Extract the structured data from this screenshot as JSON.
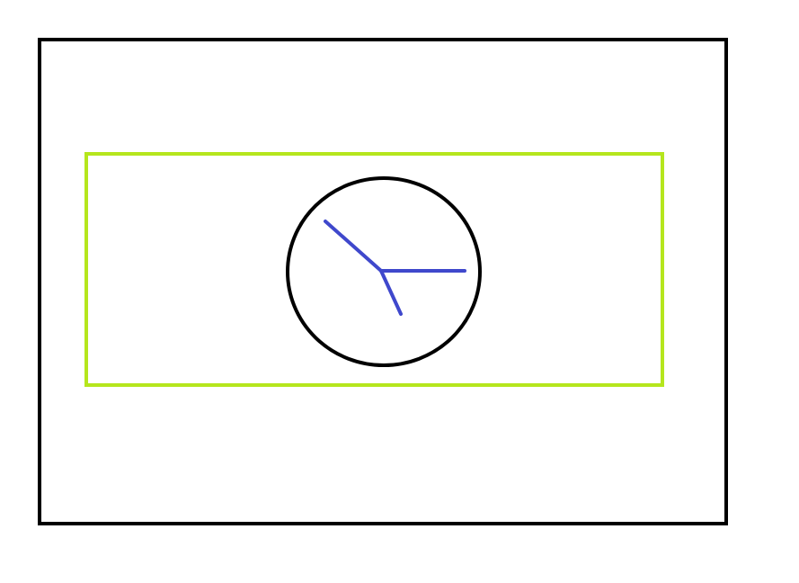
{
  "colors": {
    "background": "#ffffff",
    "outer_frame": "#000000",
    "inner_frame": "#b5e61d",
    "clock_face": "#000000",
    "clock_hands": "#3f48cc"
  },
  "shapes": {
    "outer_frame": "rectangle",
    "inner_frame": "rectangle",
    "clock_face": "circle",
    "clock_hands": [
      "hand",
      "hand",
      "hand"
    ]
  }
}
